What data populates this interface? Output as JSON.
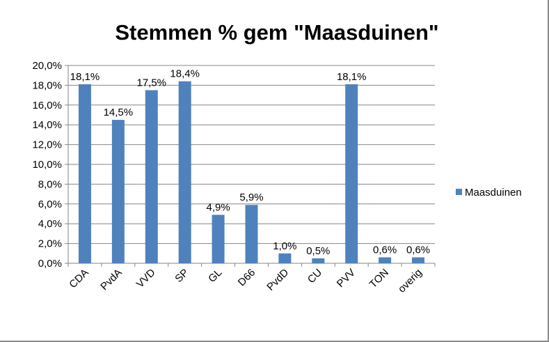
{
  "chart_data": {
    "type": "bar",
    "title": "Stemmen % gem \"Maasduinen\"",
    "xlabel": "",
    "ylabel": "",
    "ylim": [
      0,
      20
    ],
    "yticks": [
      0,
      2,
      4,
      6,
      8,
      10,
      12,
      14,
      16,
      18,
      20
    ],
    "ytick_labels": [
      "0,0%",
      "2,0%",
      "4,0%",
      "6,0%",
      "8,0%",
      "10,0%",
      "12,0%",
      "14,0%",
      "16,0%",
      "18,0%",
      "20,0%"
    ],
    "grid": true,
    "legend_position": "right",
    "bar_color": "#4f81bd",
    "categories": [
      "CDA",
      "PvdA",
      "VVD",
      "SP",
      "GL",
      "D66",
      "PvdD",
      "CU",
      "PVV",
      "TON",
      "overig"
    ],
    "series": [
      {
        "name": "Maasduinen",
        "values": [
          18.1,
          14.5,
          17.5,
          18.4,
          4.9,
          5.9,
          1.0,
          0.5,
          18.1,
          0.6,
          0.6
        ],
        "data_labels": [
          "18,1%",
          "14,5%",
          "17,5%",
          "18,4%",
          "4,9%",
          "5,9%",
          "1,0%",
          "0,5%",
          "18,1%",
          "0,6%",
          "0,6%"
        ]
      }
    ]
  }
}
